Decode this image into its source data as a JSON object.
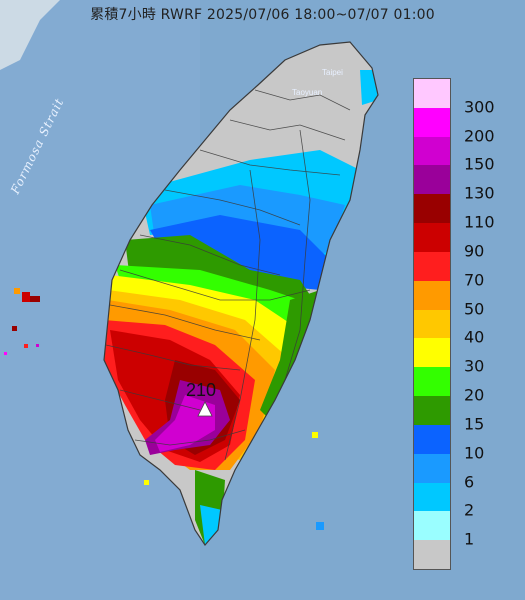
{
  "title": "累積7小時 RWRF 2025/07/06 18:00~07/07 01:00",
  "labels": {
    "strait": "Formosa Strait",
    "taipei": "Taipei",
    "taoyuan": "Taoyuan",
    "max_value": "210"
  },
  "legend": [
    {
      "label": "300",
      "color": "#ffc8ff"
    },
    {
      "label": "200",
      "color": "#ff00ff"
    },
    {
      "label": "150",
      "color": "#d000d0"
    },
    {
      "label": "130",
      "color": "#9a009a"
    },
    {
      "label": "110",
      "color": "#990000"
    },
    {
      "label": "90",
      "color": "#cc0000"
    },
    {
      "label": "70",
      "color": "#ff1e1e"
    },
    {
      "label": "50",
      "color": "#ff9a00"
    },
    {
      "label": "40",
      "color": "#ffc800"
    },
    {
      "label": "30",
      "color": "#ffff00"
    },
    {
      "label": "20",
      "color": "#33ff00"
    },
    {
      "label": "15",
      "color": "#2e9a00"
    },
    {
      "label": "10",
      "color": "#0b63ff"
    },
    {
      "label": "6",
      "color": "#1a9aff"
    },
    {
      "label": "2",
      "color": "#00c8ff"
    },
    {
      "label": "1",
      "color": "#9afeff"
    },
    {
      "label": "",
      "color": "#c8c8c8"
    }
  ],
  "colors": {
    "sea": "#7fa9cf",
    "land_base": "#c8c8c8",
    "county_border": "#3a3a3a"
  }
}
